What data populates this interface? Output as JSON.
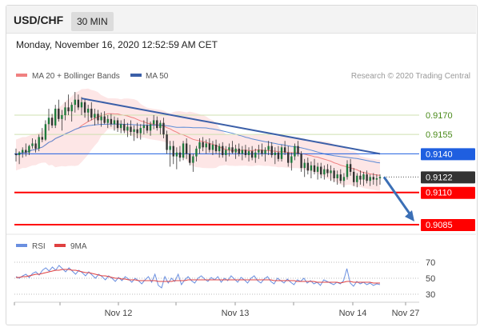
{
  "header": {
    "pair": "USD/CHF",
    "timeframe": "30 MIN"
  },
  "datetime": "Monday, November 16, 2020 12:52:59 AM CET",
  "legend": {
    "ma20_label": "MA 20 + Bollinger Bands",
    "ma50_label": "MA 50",
    "copyright": "Research © 2020 Trading Central",
    "rsi_label": "RSI",
    "ma9_label": "9MA"
  },
  "colors": {
    "ma20": "#f08080",
    "bands_fill": "#fde3e3",
    "ma50": "#5b8bd6",
    "trendline": "#3b5fa8",
    "candle": "#1e7a3c",
    "resistance_green": "#cfe0b0",
    "pivot_blue": "#1f5fe0",
    "support_red": "#ff0000",
    "arrow": "#3b6fb6",
    "rsi": "#6a8fe0",
    "ma9": "#e04040"
  },
  "chart_data": [
    {
      "type": "candlestick",
      "levels": [
        {
          "value": 0.917,
          "label": "0.9170",
          "kind": "resistance"
        },
        {
          "value": 0.9155,
          "label": "0.9155",
          "kind": "resistance"
        },
        {
          "value": 0.914,
          "label": "0.9140",
          "kind": "pivot"
        },
        {
          "value": 0.9122,
          "label": "0.9122",
          "kind": "last"
        },
        {
          "value": 0.911,
          "label": "0.9110",
          "kind": "support"
        },
        {
          "value": 0.9085,
          "label": "0.9085",
          "kind": "support"
        }
      ],
      "x_ticks": [
        "Nov 12",
        "Nov 13",
        "Nov 14",
        "Nov 27"
      ],
      "trendline": {
        "from": {
          "candle": 20,
          "price": 0.9183
        },
        "to": {
          "candle": 111,
          "price": 0.914
        }
      },
      "forecast_arrow": {
        "from_price": 0.9122,
        "to_price": 0.9085
      },
      "candles": [
        [
          0.914,
          0.9144,
          0.9134,
          0.9139
        ],
        [
          0.9139,
          0.9142,
          0.9132,
          0.9141
        ],
        [
          0.9141,
          0.9145,
          0.9137,
          0.9143
        ],
        [
          0.9143,
          0.9148,
          0.9138,
          0.9141
        ],
        [
          0.9141,
          0.9147,
          0.9139,
          0.9146
        ],
        [
          0.9146,
          0.9152,
          0.9144,
          0.9148
        ],
        [
          0.9148,
          0.9151,
          0.9141,
          0.9144
        ],
        [
          0.9144,
          0.9155,
          0.9142,
          0.9153
        ],
        [
          0.9153,
          0.916,
          0.9149,
          0.9151
        ],
        [
          0.9151,
          0.9166,
          0.915,
          0.9163
        ],
        [
          0.9163,
          0.9175,
          0.9158,
          0.9168
        ],
        [
          0.9168,
          0.9171,
          0.916,
          0.9162
        ],
        [
          0.9162,
          0.9178,
          0.916,
          0.9175
        ],
        [
          0.9175,
          0.9182,
          0.9165,
          0.9167
        ],
        [
          0.9167,
          0.9174,
          0.9158,
          0.917
        ],
        [
          0.917,
          0.918,
          0.9166,
          0.9176
        ],
        [
          0.9176,
          0.9186,
          0.917,
          0.9173
        ],
        [
          0.9173,
          0.918,
          0.9165,
          0.9178
        ],
        [
          0.9178,
          0.9188,
          0.9172,
          0.9182
        ],
        [
          0.9182,
          0.9186,
          0.9174,
          0.9176
        ],
        [
          0.9176,
          0.9184,
          0.917,
          0.918
        ],
        [
          0.918,
          0.9183,
          0.9168,
          0.9172
        ],
        [
          0.9172,
          0.9178,
          0.9165,
          0.9175
        ],
        [
          0.9175,
          0.918,
          0.9166,
          0.9168
        ],
        [
          0.9168,
          0.9175,
          0.9162,
          0.9171
        ],
        [
          0.9171,
          0.9174,
          0.9163,
          0.9166
        ],
        [
          0.9166,
          0.9172,
          0.9161,
          0.9169
        ],
        [
          0.9169,
          0.9173,
          0.9163,
          0.9164
        ],
        [
          0.9164,
          0.917,
          0.916,
          0.9167
        ],
        [
          0.9167,
          0.9171,
          0.9161,
          0.9163
        ],
        [
          0.9163,
          0.9169,
          0.9158,
          0.9166
        ],
        [
          0.9166,
          0.9168,
          0.9157,
          0.916
        ],
        [
          0.916,
          0.9166,
          0.9156,
          0.9163
        ],
        [
          0.9163,
          0.9167,
          0.9156,
          0.9158
        ],
        [
          0.9158,
          0.9164,
          0.9153,
          0.9161
        ],
        [
          0.9161,
          0.9166,
          0.9154,
          0.9157
        ],
        [
          0.9157,
          0.9162,
          0.915,
          0.9159
        ],
        [
          0.9159,
          0.9164,
          0.9152,
          0.9156
        ],
        [
          0.9156,
          0.9163,
          0.9151,
          0.916
        ],
        [
          0.916,
          0.9166,
          0.9155,
          0.9162
        ],
        [
          0.9162,
          0.9168,
          0.9156,
          0.9158
        ],
        [
          0.9158,
          0.9165,
          0.9154,
          0.9163
        ],
        [
          0.9163,
          0.917,
          0.9159,
          0.9166
        ],
        [
          0.9166,
          0.9169,
          0.9158,
          0.916
        ],
        [
          0.916,
          0.9166,
          0.9155,
          0.9164
        ],
        [
          0.9164,
          0.9168,
          0.9152,
          0.9155
        ],
        [
          0.9155,
          0.9158,
          0.914,
          0.9143
        ],
        [
          0.9143,
          0.915,
          0.913,
          0.9146
        ],
        [
          0.9146,
          0.915,
          0.9132,
          0.9138
        ],
        [
          0.9138,
          0.9145,
          0.9128,
          0.9141
        ],
        [
          0.9141,
          0.9146,
          0.9134,
          0.9137
        ],
        [
          0.9137,
          0.915,
          0.9135,
          0.9148
        ],
        [
          0.9148,
          0.9152,
          0.9136,
          0.914
        ],
        [
          0.914,
          0.9147,
          0.9131,
          0.9133
        ],
        [
          0.9133,
          0.914,
          0.9126,
          0.9138
        ],
        [
          0.9138,
          0.9146,
          0.9134,
          0.9144
        ],
        [
          0.9144,
          0.9152,
          0.914,
          0.9149
        ],
        [
          0.9149,
          0.9153,
          0.9142,
          0.9145
        ],
        [
          0.9145,
          0.9151,
          0.914,
          0.9148
        ],
        [
          0.9148,
          0.9152,
          0.9141,
          0.9143
        ],
        [
          0.9143,
          0.915,
          0.9139,
          0.9147
        ],
        [
          0.9147,
          0.9151,
          0.914,
          0.9142
        ],
        [
          0.9142,
          0.9148,
          0.9137,
          0.9146
        ],
        [
          0.9146,
          0.9149,
          0.9137,
          0.9139
        ],
        [
          0.9139,
          0.9146,
          0.9134,
          0.9143
        ],
        [
          0.9143,
          0.9148,
          0.9138,
          0.9145
        ],
        [
          0.9145,
          0.915,
          0.914,
          0.9141
        ],
        [
          0.9141,
          0.9147,
          0.9136,
          0.9144
        ],
        [
          0.9144,
          0.9148,
          0.9138,
          0.914
        ],
        [
          0.914,
          0.9146,
          0.9135,
          0.9143
        ],
        [
          0.9143,
          0.9147,
          0.9137,
          0.9139
        ],
        [
          0.9139,
          0.9145,
          0.9134,
          0.9142
        ],
        [
          0.9142,
          0.9146,
          0.9135,
          0.9137
        ],
        [
          0.9137,
          0.9144,
          0.9133,
          0.9141
        ],
        [
          0.9141,
          0.9147,
          0.9136,
          0.9143
        ],
        [
          0.9143,
          0.9148,
          0.9138,
          0.914
        ],
        [
          0.914,
          0.9145,
          0.9134,
          0.9143
        ],
        [
          0.9143,
          0.915,
          0.9139,
          0.9146
        ],
        [
          0.9146,
          0.9149,
          0.9137,
          0.9139
        ],
        [
          0.9139,
          0.9145,
          0.9132,
          0.9141
        ],
        [
          0.9141,
          0.9146,
          0.9134,
          0.9136
        ],
        [
          0.9136,
          0.9147,
          0.9134,
          0.9145
        ],
        [
          0.9145,
          0.915,
          0.9139,
          0.9141
        ],
        [
          0.9141,
          0.9146,
          0.913,
          0.9133
        ],
        [
          0.9133,
          0.9141,
          0.9127,
          0.9138
        ],
        [
          0.9138,
          0.9148,
          0.9135,
          0.9146
        ],
        [
          0.9146,
          0.915,
          0.9138,
          0.914
        ],
        [
          0.914,
          0.9142,
          0.9126,
          0.9129
        ],
        [
          0.9129,
          0.9136,
          0.9122,
          0.9133
        ],
        [
          0.9133,
          0.9137,
          0.9124,
          0.9127
        ],
        [
          0.9127,
          0.9134,
          0.9121,
          0.9131
        ],
        [
          0.9131,
          0.9136,
          0.9124,
          0.9126
        ],
        [
          0.9126,
          0.9133,
          0.912,
          0.913
        ],
        [
          0.913,
          0.9133,
          0.9121,
          0.9124
        ],
        [
          0.9124,
          0.9131,
          0.912,
          0.9128
        ],
        [
          0.9128,
          0.9132,
          0.9122,
          0.9125
        ],
        [
          0.9125,
          0.9131,
          0.9119,
          0.9127
        ],
        [
          0.9127,
          0.9129,
          0.9118,
          0.9121
        ],
        [
          0.9121,
          0.9127,
          0.9116,
          0.9124
        ],
        [
          0.9124,
          0.9128,
          0.9117,
          0.9119
        ],
        [
          0.9119,
          0.9125,
          0.9114,
          0.9122
        ],
        [
          0.9122,
          0.9135,
          0.912,
          0.9132
        ],
        [
          0.9132,
          0.9136,
          0.9123,
          0.9126
        ],
        [
          0.9126,
          0.9129,
          0.9115,
          0.9118
        ],
        [
          0.9118,
          0.9125,
          0.9114,
          0.9123
        ],
        [
          0.9123,
          0.9127,
          0.9116,
          0.912
        ],
        [
          0.912,
          0.9126,
          0.9115,
          0.9124
        ],
        [
          0.9124,
          0.9127,
          0.9117,
          0.9119
        ],
        [
          0.9119,
          0.9124,
          0.9115,
          0.9122
        ],
        [
          0.9122,
          0.9125,
          0.9116,
          0.912
        ],
        [
          0.912,
          0.9124,
          0.9115,
          0.9121
        ],
        [
          0.9121,
          0.9124,
          0.9116,
          0.9122
        ]
      ]
    },
    {
      "type": "line",
      "indicator": "RSI",
      "levels": [
        {
          "value": 70,
          "label": "70"
        },
        {
          "value": 50,
          "label": "50"
        },
        {
          "value": 30,
          "label": "30"
        }
      ],
      "ylim": [
        20,
        80
      ],
      "series": [
        {
          "name": "RSI",
          "values": [
            52,
            50,
            53,
            55,
            51,
            56,
            58,
            54,
            60,
            63,
            59,
            64,
            60,
            66,
            62,
            58,
            63,
            59,
            55,
            60,
            57,
            53,
            58,
            54,
            50,
            55,
            52,
            48,
            53,
            50,
            46,
            51,
            47,
            52,
            49,
            45,
            50,
            47,
            43,
            48,
            52,
            45,
            55,
            41,
            38,
            52,
            44,
            50,
            46,
            55,
            42,
            48,
            52,
            47,
            44,
            50,
            53,
            49,
            46,
            51,
            48,
            52,
            45,
            50,
            47,
            53,
            49,
            45,
            51,
            48,
            44,
            50,
            53,
            47,
            44,
            49,
            52,
            46,
            43,
            50,
            47,
            44,
            49,
            45,
            42,
            48,
            46,
            50,
            44,
            47,
            43,
            45,
            41,
            48,
            46,
            44,
            42,
            45,
            43,
            47,
            62,
            44,
            40,
            46,
            43,
            45,
            42,
            44,
            41,
            43,
            42
          ]
        },
        {
          "name": "9MA",
          "values": [
            51,
            51,
            52,
            52,
            53,
            54,
            55,
            55,
            56,
            57,
            58,
            59,
            60,
            60,
            61,
            61,
            61,
            60,
            60,
            59,
            58,
            57,
            57,
            56,
            55,
            54,
            53,
            53,
            52,
            51,
            50,
            50,
            49,
            49,
            48,
            48,
            48,
            47,
            47,
            47,
            47,
            47,
            47,
            46,
            46,
            46,
            46,
            46,
            47,
            47,
            47,
            47,
            48,
            48,
            48,
            48,
            48,
            48,
            48,
            48,
            48,
            48,
            48,
            48,
            48,
            48,
            48,
            48,
            48,
            48,
            48,
            48,
            48,
            48,
            48,
            48,
            48,
            48,
            47,
            47,
            47,
            47,
            47,
            47,
            47,
            46,
            46,
            46,
            46,
            46,
            46,
            45,
            45,
            45,
            45,
            45,
            45,
            45,
            44,
            45,
            46,
            46,
            45,
            45,
            45,
            45,
            45,
            45,
            44,
            44,
            44
          ]
        }
      ]
    }
  ]
}
